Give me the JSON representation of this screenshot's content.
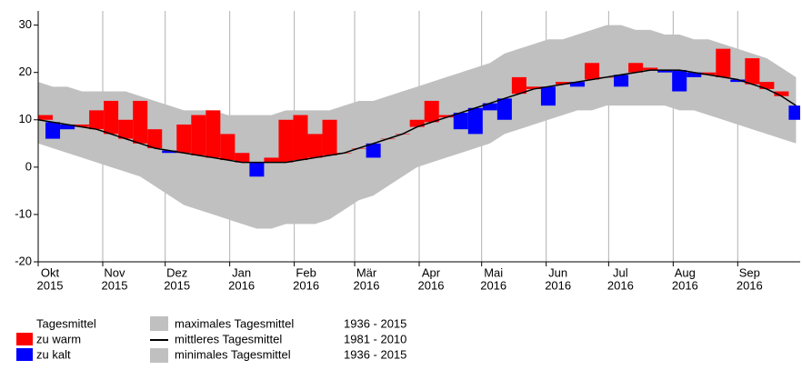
{
  "chart_data": {
    "type": "temperature-band",
    "xlim": [
      0,
      366
    ],
    "ylim": [
      -20,
      33
    ],
    "yticks": [
      -20,
      -10,
      0,
      10,
      20,
      30
    ],
    "xticks": [
      {
        "value": 0,
        "label": [
          "Okt",
          "2015"
        ]
      },
      {
        "value": 31,
        "label": [
          "Nov",
          "2015"
        ]
      },
      {
        "value": 61,
        "label": [
          "Dez",
          "2015"
        ]
      },
      {
        "value": 92,
        "label": [
          "Jan",
          "2016"
        ]
      },
      {
        "value": 123,
        "label": [
          "Feb",
          "2016"
        ]
      },
      {
        "value": 152,
        "label": [
          "Mär",
          "2016"
        ]
      },
      {
        "value": 183,
        "label": [
          "Apr",
          "2016"
        ]
      },
      {
        "value": 213,
        "label": [
          "Mai",
          "2016"
        ]
      },
      {
        "value": 244,
        "label": [
          "Jun",
          "2016"
        ]
      },
      {
        "value": 274,
        "label": [
          "Jul",
          "2016"
        ]
      },
      {
        "value": 305,
        "label": [
          "Aug",
          "2016"
        ]
      },
      {
        "value": 336,
        "label": [
          "Sep",
          "2016"
        ]
      }
    ],
    "grid": "x",
    "x": [
      0,
      7,
      14,
      21,
      28,
      35,
      42,
      49,
      56,
      63,
      70,
      77,
      84,
      91,
      98,
      105,
      112,
      119,
      126,
      133,
      140,
      147,
      154,
      161,
      168,
      175,
      182,
      189,
      196,
      203,
      210,
      217,
      224,
      231,
      238,
      245,
      252,
      259,
      266,
      273,
      280,
      287,
      294,
      301,
      308,
      315,
      322,
      329,
      336,
      343,
      350,
      357,
      364
    ],
    "series": [
      {
        "name": "maximales Tagesmittel",
        "period": "1936 - 2015",
        "color": "#c0c0c0",
        "values": [
          18,
          17,
          17,
          16,
          16,
          16,
          16,
          15,
          14,
          13,
          12,
          12,
          12,
          11,
          11,
          11,
          11,
          12,
          12,
          12,
          12,
          13,
          14,
          14,
          15,
          16,
          17,
          18,
          19,
          20,
          21,
          22,
          24,
          25,
          26,
          27,
          27,
          28,
          29,
          30,
          30,
          29,
          29,
          28,
          28,
          27,
          27,
          26,
          25,
          24,
          23,
          21,
          19
        ]
      },
      {
        "name": "mittleres Tagesmittel",
        "period": "1981 - 2010",
        "color": "#000000",
        "values": [
          10,
          9.5,
          9,
          8.5,
          8,
          7,
          6,
          5,
          4,
          3.5,
          3,
          2.5,
          2,
          1.5,
          1,
          1,
          1,
          1,
          1.5,
          2,
          2.5,
          3,
          4,
          5,
          6,
          7,
          8.5,
          9.5,
          10.5,
          11.5,
          12.5,
          13.5,
          14.5,
          15.5,
          16.5,
          17,
          17.5,
          18,
          18.5,
          19,
          19.5,
          20,
          20.5,
          20.5,
          20.5,
          20,
          19.5,
          19,
          18.5,
          17.5,
          16.5,
          15,
          13
        ]
      },
      {
        "name": "minimales Tagesmittel",
        "period": "1936 - 2015",
        "color": "#c0c0c0",
        "values": [
          5,
          4,
          3,
          2,
          1,
          0,
          -1,
          -2,
          -4,
          -6,
          -8,
          -9,
          -10,
          -11,
          -12,
          -13,
          -13,
          -12,
          -12,
          -12,
          -11,
          -9,
          -7,
          -6,
          -4,
          -2,
          0,
          1,
          2,
          3,
          4,
          5,
          7,
          8,
          9,
          10,
          11,
          12,
          12,
          13,
          13,
          13,
          13,
          13,
          12,
          12,
          11,
          10,
          9,
          8,
          7,
          6,
          5
        ]
      },
      {
        "name": "Tagesmittel",
        "warm_label": "zu warm",
        "warm_color": "#ff0000",
        "cold_label": "zu kalt",
        "cold_color": "#0000ff",
        "values": [
          11,
          6,
          8,
          9,
          12,
          14,
          10,
          14,
          8,
          3,
          9,
          11,
          12,
          7,
          3,
          -2,
          2,
          10,
          11,
          7,
          10,
          3,
          4,
          2,
          6,
          7,
          10,
          14,
          11,
          8,
          7,
          12,
          10,
          19,
          17,
          13,
          18,
          17,
          22,
          19,
          17,
          22,
          21,
          20,
          16,
          19,
          20,
          25,
          18,
          23,
          18,
          16,
          10
        ]
      }
    ]
  }
}
